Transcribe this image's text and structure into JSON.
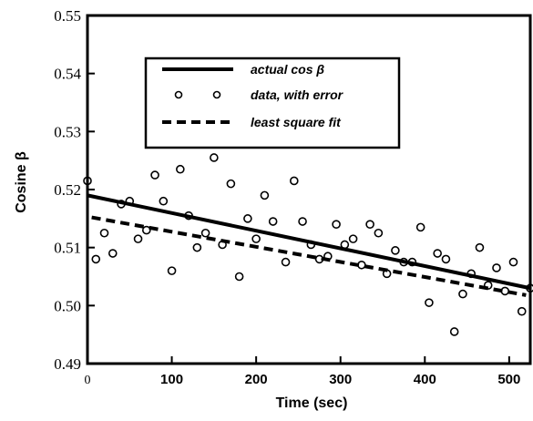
{
  "chart_data": {
    "type": "scatter",
    "title": "",
    "xlabel": "Time (sec)",
    "ylabel": "Cosine β",
    "xlim": [
      0,
      525
    ],
    "ylim": [
      0.49,
      0.55
    ],
    "x_ticks": [
      "0",
      "100",
      "200",
      "300",
      "400",
      "500"
    ],
    "y_ticks": [
      "0.49",
      "0.50",
      "0.51",
      "0.52",
      "0.53",
      "0.54",
      "0.55"
    ],
    "grid": false,
    "legend_position": "top-center",
    "series": [
      {
        "name": "actual cos β",
        "style": "solid-line",
        "color": "#000000",
        "x": [
          0,
          525
        ],
        "y": [
          0.519,
          0.503
        ]
      },
      {
        "name": "data, with error",
        "style": "open-circle-markers",
        "color": "#000000",
        "x": [
          0,
          10,
          20,
          30,
          40,
          50,
          60,
          70,
          80,
          90,
          100,
          110,
          120,
          130,
          140,
          150,
          160,
          170,
          180,
          190,
          200,
          210,
          220,
          235,
          245,
          255,
          265,
          275,
          285,
          295,
          305,
          315,
          325,
          335,
          345,
          355,
          365,
          375,
          385,
          395,
          405,
          415,
          425,
          435,
          445,
          455,
          465,
          475,
          485,
          495,
          505,
          515,
          525
        ],
        "y": [
          0.5215,
          0.508,
          0.5125,
          0.509,
          0.5175,
          0.518,
          0.5115,
          0.513,
          0.5225,
          0.518,
          0.506,
          0.5235,
          0.5155,
          0.51,
          0.5125,
          0.5255,
          0.5105,
          0.521,
          0.505,
          0.515,
          0.5115,
          0.519,
          0.5145,
          0.5075,
          0.5215,
          0.5145,
          0.5105,
          0.508,
          0.5085,
          0.514,
          0.5105,
          0.5115,
          0.507,
          0.514,
          0.5125,
          0.5055,
          0.5095,
          0.5075,
          0.5075,
          0.5135,
          0.5005,
          0.509,
          0.508,
          0.4955,
          0.502,
          0.5055,
          0.51,
          0.5035,
          0.5065,
          0.5025,
          0.5075,
          0.499,
          0.503
        ]
      },
      {
        "name": "least square fit",
        "style": "dashed-line",
        "color": "#000000",
        "x": [
          5,
          520
        ],
        "y": [
          0.5152,
          0.5018
        ]
      }
    ]
  }
}
